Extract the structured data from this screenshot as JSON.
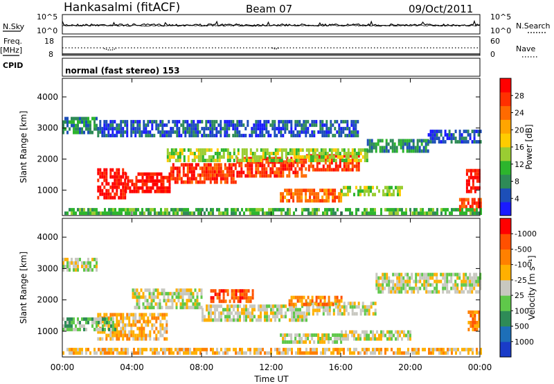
{
  "header": {
    "station": "Hankasalmi (fitACF)",
    "beam": "Beam 07",
    "date": "09/Oct/2011"
  },
  "status_panel": {
    "nsky_label": "N.Sky",
    "nsky_ticks": [
      "10^5",
      "10^0"
    ],
    "nsearch_label": "N.Search",
    "nsearch_ticks": [
      "10^5",
      "10^0"
    ],
    "freq_label_1": "Freq.",
    "freq_label_2": "[MHz]",
    "freq_ticks": [
      "18",
      "8"
    ],
    "nave_label": "Nave",
    "nave_ticks": [
      "60",
      "0"
    ],
    "cpid_label": "CPID",
    "cpid_value": "normal (fast stereo) 153"
  },
  "chart_data": [
    {
      "type": "heatmap",
      "name": "power",
      "ylabel": "Slant Range [km]",
      "ytick_labels": [
        "1000",
        "2000",
        "3000",
        "4000"
      ],
      "yticks": [
        1000,
        2000,
        3000,
        4000
      ],
      "ylim": [
        180,
        4600
      ],
      "xlim_hours": [
        0,
        24
      ],
      "colorbar_label": "Power [dB]",
      "colorbar_ticks": [
        "4",
        "8",
        "12",
        "16",
        "20",
        "24",
        "28"
      ],
      "colorbar_colors": [
        "#1a1aff",
        "#1d4fb8",
        "#2e8b57",
        "#2db52d",
        "#9acd32",
        "#ffcc00",
        "#ffa500",
        "#ff6a00",
        "#ff3000",
        "#ff0000"
      ],
      "bands": [
        {
          "x": [
            0.0,
            2.0
          ],
          "y": [
            2800,
            3300
          ],
          "v": 2
        },
        {
          "x": [
            2.0,
            17.0
          ],
          "y": [
            2700,
            3200
          ],
          "v": 1
        },
        {
          "x": [
            2.0,
            3.6
          ],
          "y": [
            700,
            1700
          ],
          "v": 9
        },
        {
          "x": [
            3.6,
            6.2
          ],
          "y": [
            900,
            1500
          ],
          "v": 9
        },
        {
          "x": [
            6.2,
            10.0
          ],
          "y": [
            1200,
            1800
          ],
          "v": 8
        },
        {
          "x": [
            10.0,
            14.0
          ],
          "y": [
            1400,
            2000
          ],
          "v": 8
        },
        {
          "x": [
            14.0,
            17.0
          ],
          "y": [
            1600,
            2100
          ],
          "v": 8
        },
        {
          "x": [
            6.0,
            17.5
          ],
          "y": [
            1900,
            2300
          ],
          "v": 4
        },
        {
          "x": [
            17.5,
            21.0
          ],
          "y": [
            2200,
            2600
          ],
          "v": 2
        },
        {
          "x": [
            21.0,
            24.0
          ],
          "y": [
            2500,
            2900
          ],
          "v": 1
        },
        {
          "x": [
            12.5,
            16.0
          ],
          "y": [
            600,
            1000
          ],
          "v": 7
        },
        {
          "x": [
            16.0,
            19.5
          ],
          "y": [
            800,
            1100
          ],
          "v": 4
        },
        {
          "x": [
            23.2,
            24.0
          ],
          "y": [
            900,
            1600
          ],
          "v": 9
        },
        {
          "x": [
            22.8,
            24.0
          ],
          "y": [
            300,
            700
          ],
          "v": 8
        },
        {
          "x": [
            0.0,
            24.0
          ],
          "y": [
            200,
            400
          ],
          "v": 3
        }
      ]
    },
    {
      "type": "heatmap",
      "name": "velocity",
      "ylabel": "Slant Range [km]",
      "ytick_labels": [
        "1000",
        "2000",
        "3000",
        "4000"
      ],
      "yticks": [
        1000,
        2000,
        3000,
        4000
      ],
      "ylim": [
        180,
        4600
      ],
      "xlim_hours": [
        0,
        24
      ],
      "xtick_labels": [
        "00:00",
        "04:00",
        "08:00",
        "12:00",
        "16:00",
        "20:00",
        "00:00"
      ],
      "xticks_hours": [
        0,
        4,
        8,
        12,
        16,
        20,
        24
      ],
      "xlabel": "Time UT",
      "colorbar_label": "Velocity [m s⁻¹]",
      "colorbar_ticks": [
        "1000",
        "500",
        "100",
        "25",
        "-25",
        "-100",
        "-500",
        "-1000"
      ],
      "colorbar_colors": [
        "#1a3cc8",
        "#1d6fb8",
        "#2e8b57",
        "#5fc84a",
        "#c8c8c0",
        "#ffb000",
        "#ff8000",
        "#ff5000",
        "#ff0000"
      ],
      "bands": [
        {
          "x": [
            0.0,
            2.0
          ],
          "y": [
            2900,
            3300
          ],
          "v": 4
        },
        {
          "x": [
            4.0,
            8.0
          ],
          "y": [
            1700,
            2300
          ],
          "v": 4
        },
        {
          "x": [
            8.0,
            14.0
          ],
          "y": [
            1300,
            1800
          ],
          "v": 4
        },
        {
          "x": [
            14.0,
            18.0
          ],
          "y": [
            1500,
            1900
          ],
          "v": 4
        },
        {
          "x": [
            18.0,
            24.0
          ],
          "y": [
            2200,
            2800
          ],
          "v": 4
        },
        {
          "x": [
            2.0,
            6.0
          ],
          "y": [
            700,
            1500
          ],
          "v": 5
        },
        {
          "x": [
            8.5,
            11.0
          ],
          "y": [
            1900,
            2300
          ],
          "v": 7
        },
        {
          "x": [
            13.0,
            16.0
          ],
          "y": [
            1800,
            2100
          ],
          "v": 6
        },
        {
          "x": [
            12.5,
            16.0
          ],
          "y": [
            600,
            900
          ],
          "v": 4
        },
        {
          "x": [
            16.0,
            20.0
          ],
          "y": [
            700,
            1000
          ],
          "v": 4
        },
        {
          "x": [
            23.3,
            24.0
          ],
          "y": [
            1000,
            1600
          ],
          "v": 6
        },
        {
          "x": [
            0.0,
            24.0
          ],
          "y": [
            250,
            450
          ],
          "v": 5
        },
        {
          "x": [
            0.0,
            3.0
          ],
          "y": [
            1000,
            1400
          ],
          "v": 3
        }
      ]
    }
  ]
}
